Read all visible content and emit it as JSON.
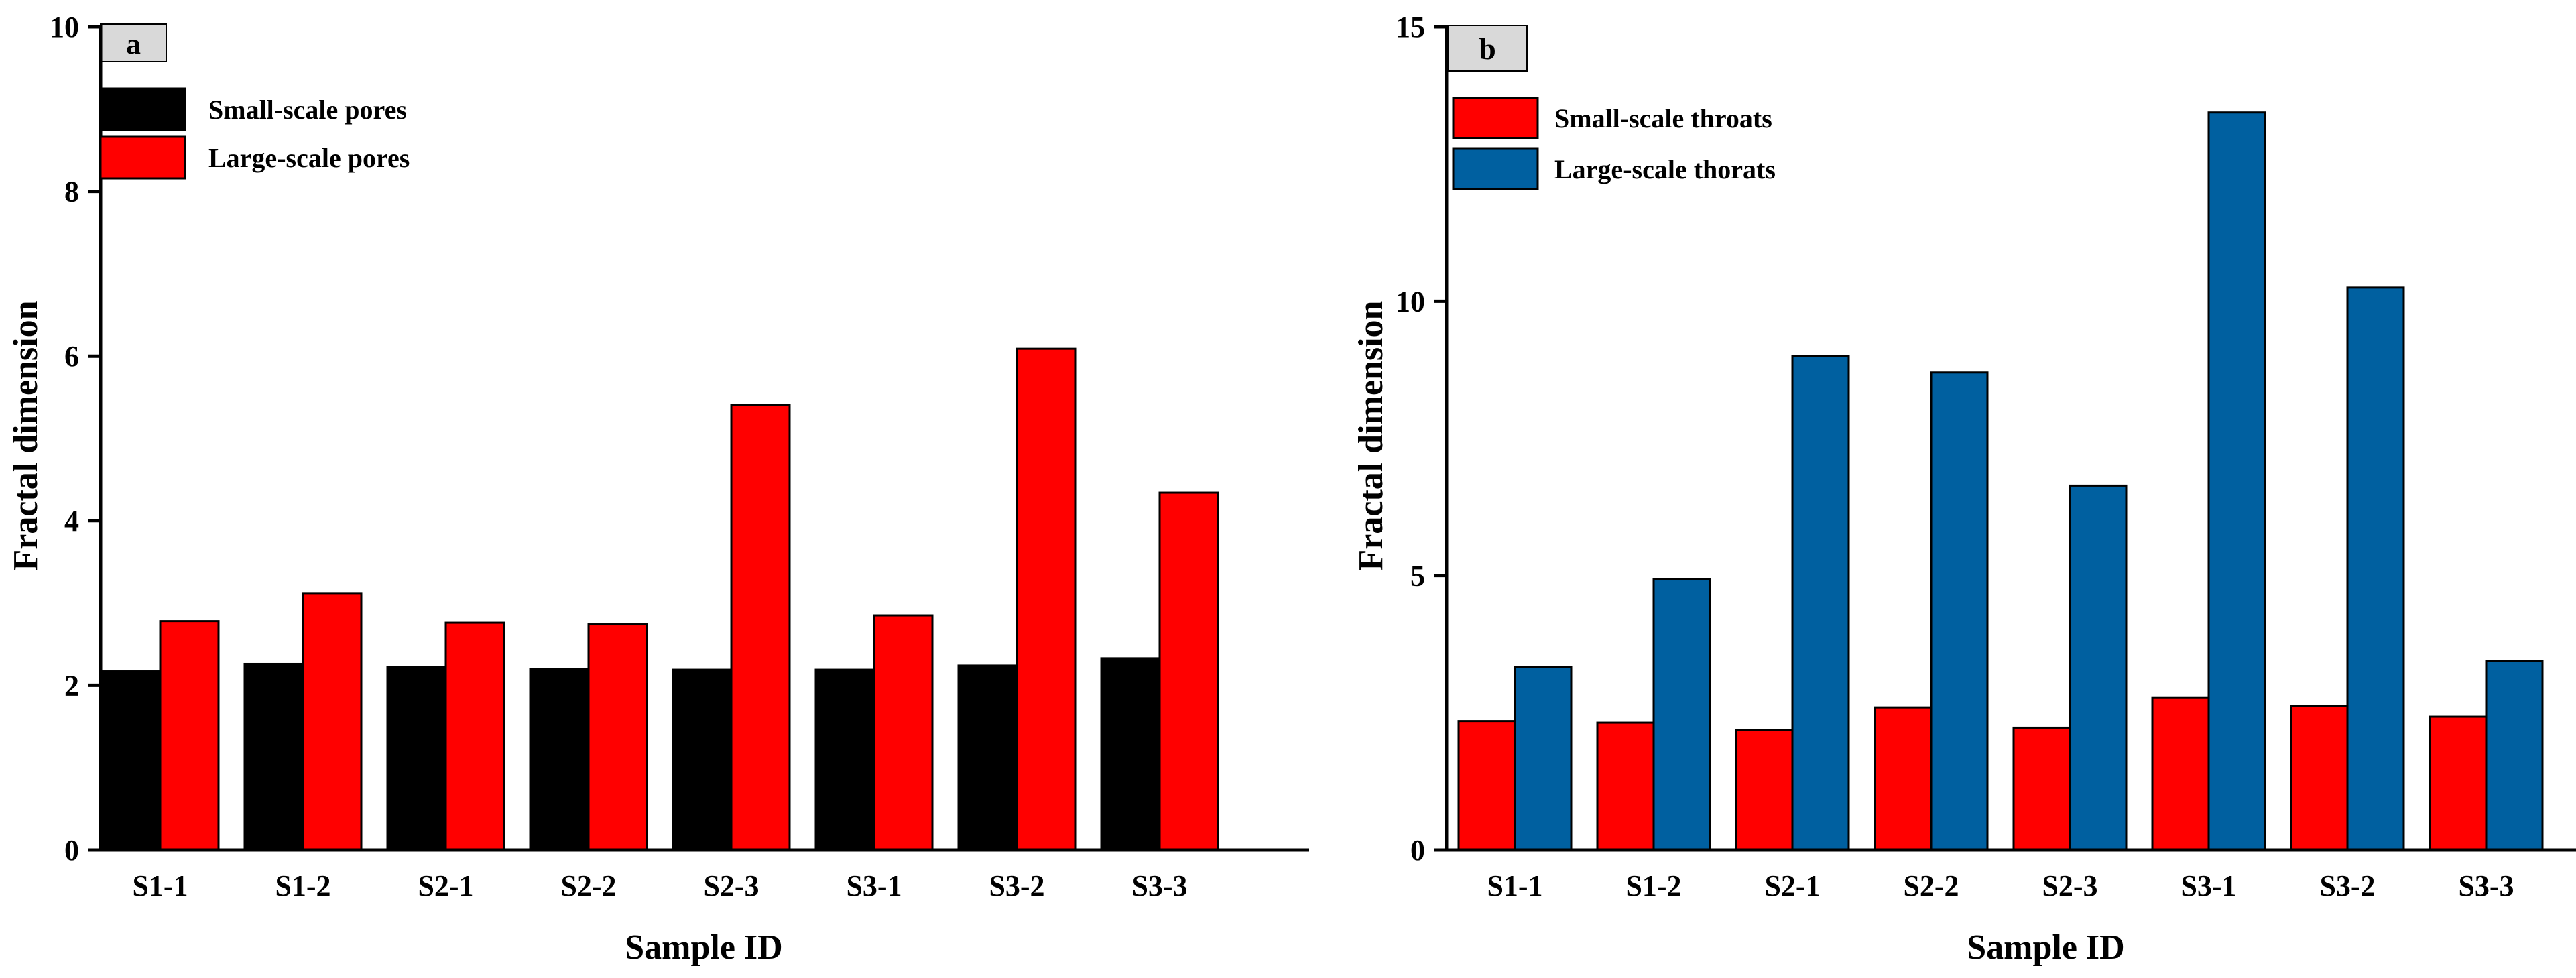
{
  "chart_data": [
    {
      "panel_label": "a",
      "type": "bar",
      "xlabel": "Sample ID",
      "ylabel": "Fractal dimension",
      "ylim": [
        0,
        10
      ],
      "yticks": [
        "0",
        "2",
        "4",
        "6",
        "8",
        "10"
      ],
      "ytick_values": [
        0,
        2,
        4,
        6,
        8,
        10
      ],
      "categories": [
        "S1-1",
        "S1-2",
        "S2-1",
        "S2-2",
        "S2-3",
        "S3-1",
        "S3-2",
        "S3-3"
      ],
      "series": [
        {
          "name": "Small-scale pores",
          "color": "#000000",
          "values": [
            2.17,
            2.26,
            2.22,
            2.2,
            2.19,
            2.19,
            2.24,
            2.33
          ]
        },
        {
          "name": "Large-scale pores",
          "color": "#ff0000",
          "values": [
            2.78,
            3.12,
            2.76,
            2.74,
            5.41,
            2.85,
            6.09,
            4.34
          ]
        }
      ],
      "legend_position": "top-left"
    },
    {
      "panel_label": "b",
      "type": "bar",
      "xlabel": "Sample ID",
      "ylabel": "Fractal dimension",
      "ylim": [
        0,
        15
      ],
      "yticks": [
        "0",
        "5",
        "10",
        "15"
      ],
      "ytick_values": [
        0,
        5,
        10,
        15
      ],
      "categories": [
        "S1-1",
        "S1-2",
        "S2-1",
        "S2-2",
        "S2-3",
        "S3-1",
        "S3-2",
        "S3-3"
      ],
      "series": [
        {
          "name": "Small-scale throats",
          "color": "#ff0000",
          "values": [
            2.35,
            2.32,
            2.19,
            2.6,
            2.23,
            2.77,
            2.63,
            2.43
          ]
        },
        {
          "name": "Large-scale thorats",
          "color": "#0060a0",
          "values": [
            3.33,
            4.93,
            9.0,
            8.7,
            6.64,
            13.44,
            10.25,
            3.45
          ]
        }
      ],
      "legend_position": "top-left"
    }
  ]
}
